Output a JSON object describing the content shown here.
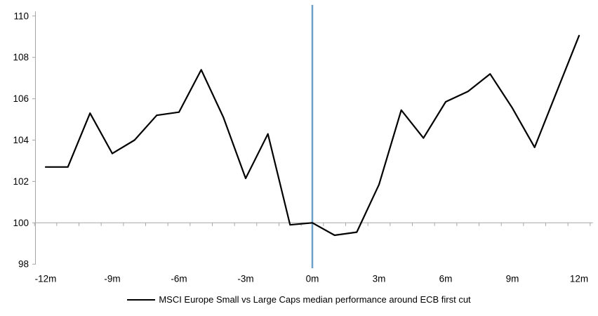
{
  "chart_data": {
    "type": "line",
    "title": "",
    "xlabel": "",
    "ylabel": "",
    "x": [
      -12,
      -11,
      -10,
      -9,
      -8,
      -7,
      -6,
      -5,
      -4,
      -3,
      -2,
      -1,
      0,
      1,
      2,
      3,
      4,
      5,
      6,
      7,
      8,
      9,
      10,
      11,
      12
    ],
    "series": [
      {
        "name": "MSCI Europe Small vs Large Caps median performance around ECB first cut",
        "values": [
          102.7,
          102.7,
          105.3,
          103.35,
          104.0,
          105.2,
          105.35,
          107.4,
          105.1,
          102.15,
          104.3,
          99.9,
          100.0,
          99.4,
          99.55,
          101.85,
          105.45,
          104.1,
          105.85,
          106.35,
          107.2,
          105.55,
          103.65,
          106.35,
          109.05
        ]
      }
    ],
    "xlim": [
      -12,
      12
    ],
    "ylim": [
      98,
      110
    ],
    "y_ticks": [
      98,
      100,
      102,
      104,
      106,
      108,
      110
    ],
    "y_tick_labels": [
      "98",
      "100",
      "102",
      "104",
      "106",
      "108",
      "110"
    ],
    "x_tick_months": [
      -12,
      -9,
      -6,
      -3,
      0,
      3,
      6,
      9,
      12
    ],
    "x_tick_labels": [
      "-12m",
      "-9m",
      "-6m",
      "-3m",
      "0m",
      "3m",
      "6m",
      "9m",
      "12m"
    ],
    "baseline_value": 100,
    "event_line_x": 0,
    "grid": "none (single horizontal axis line at 100)",
    "legend_position": "bottom-center"
  },
  "legend": {
    "label": "MSCI Europe Small vs Large Caps median performance around ECB first cut"
  },
  "colors": {
    "series": "#000000",
    "axis": "#a6a6a6",
    "event_line": "#6fa0c8",
    "text": "#000000",
    "background": "#ffffff"
  }
}
